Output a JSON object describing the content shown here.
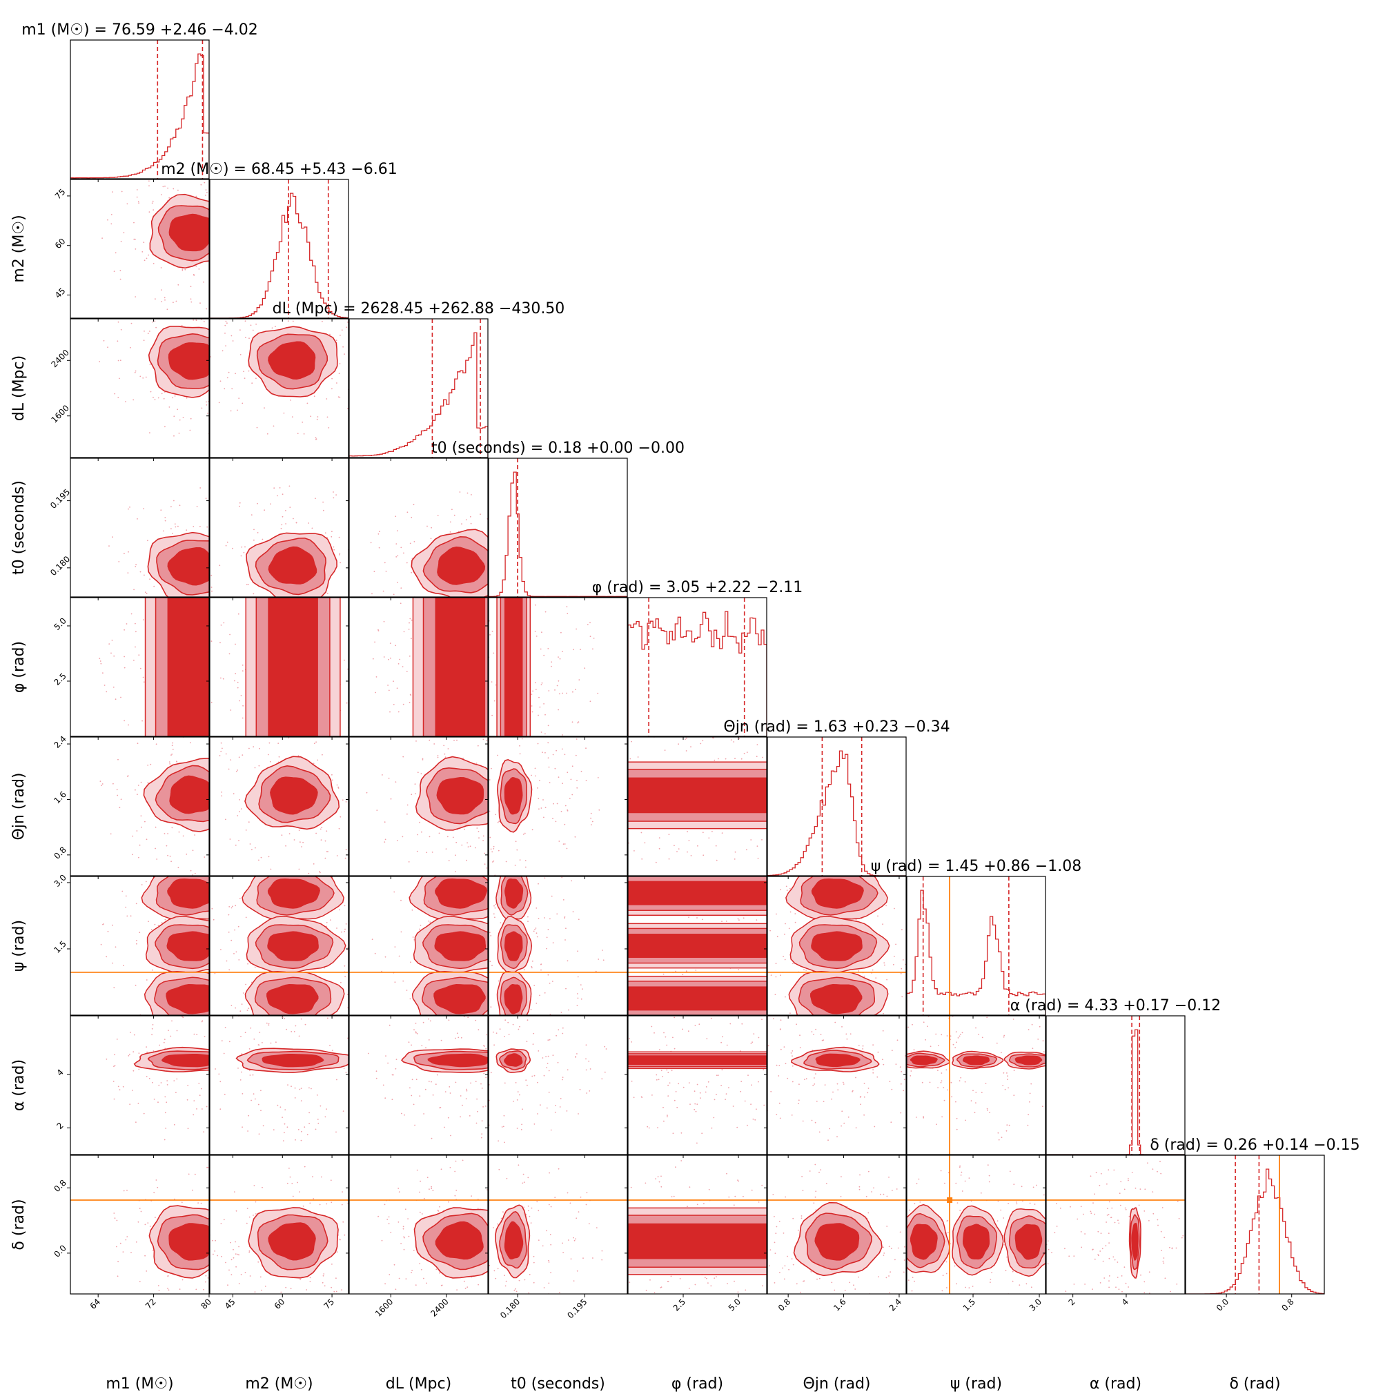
{
  "chart_data": {
    "type": "corner",
    "parameters": [
      {
        "id": "m1",
        "label": "m1 (M☉)",
        "title": "m1 (M☉) = 76.59 +2.46 −4.02",
        "median": 76.59,
        "plus": 2.46,
        "minus": 4.02,
        "range": [
          60,
          80
        ],
        "ticks": [
          64,
          72,
          80
        ],
        "tick_labels": [
          "64",
          "72",
          "80"
        ],
        "shape": "rising-sharp"
      },
      {
        "id": "m2",
        "label": "m2 (M☉)",
        "title": "m2 (M☉) = 68.45 +5.43 −6.61",
        "median": 68.45,
        "plus": 5.43,
        "minus": 6.61,
        "range": [
          38,
          80
        ],
        "ticks": [
          45,
          60,
          75
        ],
        "tick_labels": [
          "45",
          "60",
          "75"
        ],
        "shape": "gaussian"
      },
      {
        "id": "dL",
        "label": "dL (Mpc)",
        "title": "dL (Mpc) = 2628.45 +262.88 −430.50",
        "median": 2628.45,
        "plus": 262.88,
        "minus": 430.5,
        "range": [
          1000,
          3000
        ],
        "ticks": [
          1600,
          2400
        ],
        "tick_labels": [
          "1600",
          "2400"
        ],
        "shape": "rising"
      },
      {
        "id": "t0",
        "label": "t0 (seconds)",
        "title": "t0 (seconds) = 0.18 +0.00 −0.00",
        "median": 0.18,
        "plus": 0.0,
        "minus": 0.0,
        "range": [
          0.1735,
          0.2045
        ],
        "ticks": [
          0.18,
          0.195
        ],
        "tick_labels": [
          "0.180",
          "0.195"
        ],
        "shape": "narrow"
      },
      {
        "id": "phi",
        "label": "φ (rad)",
        "title": "φ (rad) = 3.05 +2.22 −2.11",
        "median": 3.05,
        "plus": 2.22,
        "minus": 2.11,
        "range": [
          0,
          6.28
        ],
        "ticks": [
          2.5,
          5.0
        ],
        "tick_labels": [
          "2.5",
          "5.0"
        ],
        "shape": "flat"
      },
      {
        "id": "theta_jn",
        "label": "Θjn (rad)",
        "title": "Θjn (rad) = 1.63 +0.23 −0.34",
        "median": 1.63,
        "plus": 0.23,
        "minus": 0.34,
        "range": [
          0.5,
          2.5
        ],
        "ticks": [
          0.8,
          1.6,
          2.4
        ],
        "tick_labels": [
          "0.8",
          "1.6",
          "2.4"
        ],
        "shape": "skew-left"
      },
      {
        "id": "psi",
        "label": "ψ (rad)",
        "title": "ψ (rad) = 1.45 +0.86 −1.08",
        "median": 1.45,
        "plus": 0.86,
        "minus": 1.08,
        "range": [
          0,
          3.14
        ],
        "ticks": [
          1.5,
          3.0
        ],
        "tick_labels": [
          "1.5",
          "3.0"
        ],
        "shape": "bimodal",
        "truth": 0.97
      },
      {
        "id": "alpha",
        "label": "α (rad)",
        "title": "α (rad) = 4.33 +0.17 −0.12",
        "median": 4.33,
        "plus": 0.17,
        "minus": 0.12,
        "range": [
          1,
          6.2
        ],
        "ticks": [
          2,
          4
        ],
        "tick_labels": [
          "2",
          "4"
        ],
        "shape": "spike"
      },
      {
        "id": "delta",
        "label": "δ (rad)",
        "title": "δ (rad) = 0.26 +0.14 −0.15",
        "median": 0.26,
        "plus": 0.14,
        "minus": 0.15,
        "range": [
          -0.5,
          1.2
        ],
        "ticks": [
          0.0,
          0.8
        ],
        "tick_labels": [
          "0.0",
          "0.8"
        ],
        "shape": "gaussian",
        "truth": 0.65
      }
    ],
    "truth_color": "#ff7f0e",
    "contour_color": "#d62728",
    "fill_inner": "#d62728",
    "fill_outer": "#e8939a",
    "fill_faint": "#f7d3d6"
  }
}
